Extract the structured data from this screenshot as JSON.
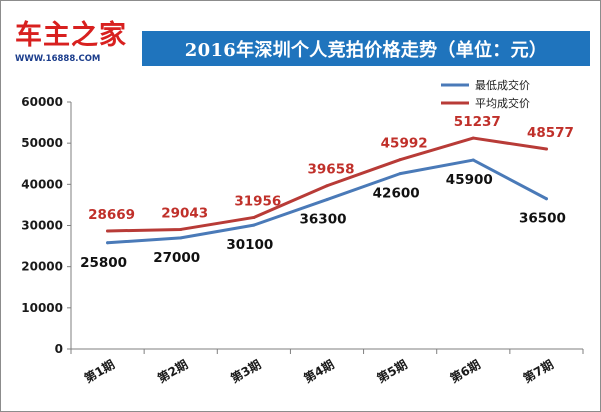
{
  "header": {
    "logo_text": "车主之家",
    "logo_url": "WWW.16888.COM",
    "title": "2016年深圳个人竞拍价格走势（单位：元）"
  },
  "colors": {
    "min_series": "#4a7ab8",
    "avg_series": "#b83b37",
    "title_bg": "#1f74bd",
    "logo_red": "#d8201f",
    "logo_blue": "#1b3d8c"
  },
  "chart_data": {
    "type": "line",
    "title": "2016年深圳个人竞拍价格走势（单位：元）",
    "categories": [
      "第1期",
      "第2期",
      "第3期",
      "第4期",
      "第5期",
      "第6期",
      "第7期"
    ],
    "series": [
      {
        "name": "最低成交价",
        "values": [
          25800,
          27000,
          30100,
          36300,
          42600,
          45900,
          36500
        ]
      },
      {
        "name": "平均成交价",
        "values": [
          28669,
          29043,
          31956,
          39658,
          45992,
          51237,
          48577
        ]
      }
    ],
    "ylim": [
      0,
      60000
    ],
    "yticks": [
      0,
      10000,
      20000,
      30000,
      40000,
      50000,
      60000
    ],
    "xlabel": "",
    "ylabel": "",
    "grid": false,
    "legend": "top-right",
    "data_labels": true
  }
}
